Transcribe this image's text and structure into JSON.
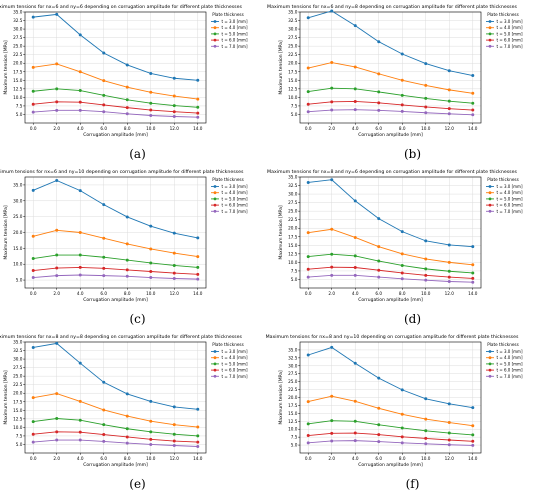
{
  "figure": {
    "panels": [
      {
        "caption": "(a)",
        "chart_data": {
          "type": "line",
          "title": "Maximum tensions for nx=6 and ny=6 depending on corrugation amplitude for different plate thicknesses",
          "xlabel": "Corrugation amplitude [mm]",
          "ylabel": "Maximum tension [MPa]",
          "x": [
            0,
            2,
            4,
            6,
            8,
            10,
            12,
            14
          ],
          "xticks": [
            "0.0",
            "2.0",
            "4.0",
            "6.0",
            "8.0",
            "10.0",
            "12.0",
            "14.0"
          ],
          "ylim": [
            2.5,
            35
          ],
          "yticks": [
            "5.0",
            "7.5",
            "10.0",
            "12.5",
            "15.0",
            "17.5",
            "20.0",
            "22.5",
            "25.0",
            "27.5",
            "30.0",
            "32.5",
            "35.0"
          ],
          "grid": true,
          "legend_title": "Plate thickness",
          "legend_position": "outside-right",
          "series": [
            {
              "name": "t = 3.0 [mm]",
              "color": "#1f77b4",
              "values": [
                33.5,
                34.3,
                28.3,
                23.0,
                19.5,
                17.0,
                15.6,
                15.0
              ]
            },
            {
              "name": "t = 4.0 [mm]",
              "color": "#ff7f0e",
              "values": [
                18.8,
                19.8,
                17.5,
                14.9,
                13.0,
                11.5,
                10.4,
                9.5
              ]
            },
            {
              "name": "t = 5.0 [mm]",
              "color": "#2ca02c",
              "values": [
                11.8,
                12.5,
                12.0,
                10.6,
                9.3,
                8.3,
                7.6,
                7.1
              ]
            },
            {
              "name": "t = 6.0 [mm]",
              "color": "#d62728",
              "values": [
                8.0,
                8.7,
                8.6,
                7.8,
                7.0,
                6.3,
                5.8,
                5.4
              ]
            },
            {
              "name": "t = 7.0 [mm]",
              "color": "#9467bd",
              "values": [
                5.7,
                6.2,
                6.2,
                5.8,
                5.2,
                4.7,
                4.4,
                4.2
              ]
            }
          ]
        }
      },
      {
        "caption": "(b)",
        "chart_data": {
          "type": "line",
          "title": "Maximum tensions for nx=6 and ny=8 depending on corrugation amplitude for different plate thicknesses",
          "xlabel": "Corrugation amplitude [mm]",
          "ylabel": "Maximum tension [MPa]",
          "x": [
            0,
            2,
            4,
            6,
            8,
            10,
            12,
            14
          ],
          "xticks": [
            "0.0",
            "2.0",
            "4.0",
            "6.0",
            "8.0",
            "10.0",
            "12.0",
            "14.0"
          ],
          "ylim": [
            2.5,
            35
          ],
          "yticks": [
            "5.0",
            "7.5",
            "10.0",
            "12.5",
            "15.0",
            "17.5",
            "20.0",
            "22.5",
            "25.0",
            "27.5",
            "30.0",
            "32.5",
            "35.0"
          ],
          "grid": true,
          "legend_title": "Plate thickness",
          "legend_position": "outside-right",
          "series": [
            {
              "name": "t = 3.0 [mm]",
              "color": "#1f77b4",
              "values": [
                33.3,
                35.3,
                31.0,
                26.3,
                22.7,
                19.9,
                17.8,
                16.4
              ]
            },
            {
              "name": "t = 4.0 [mm]",
              "color": "#ff7f0e",
              "values": [
                18.6,
                20.2,
                18.9,
                16.9,
                15.0,
                13.5,
                12.2,
                11.2
              ]
            },
            {
              "name": "t = 5.0 [mm]",
              "color": "#2ca02c",
              "values": [
                11.7,
                12.7,
                12.5,
                11.6,
                10.6,
                9.7,
                8.9,
                8.3
              ]
            },
            {
              "name": "t = 6.0 [mm]",
              "color": "#d62728",
              "values": [
                8.0,
                8.7,
                8.8,
                8.4,
                7.8,
                7.2,
                6.7,
                6.3
              ]
            },
            {
              "name": "t = 7.0 [mm]",
              "color": "#9467bd",
              "values": [
                5.8,
                6.3,
                6.4,
                6.2,
                5.9,
                5.5,
                5.2,
                4.9
              ]
            }
          ]
        }
      },
      {
        "caption": "(c)",
        "chart_data": {
          "type": "line",
          "title": "Maximum tensions for nx=6 and ny=10 depending on corrugation amplitude for different plate thicknesses",
          "xlabel": "Corrugation amplitude [mm]",
          "ylabel": "Maximum tension [MPa]",
          "x": [
            0,
            2,
            4,
            6,
            8,
            10,
            12,
            14
          ],
          "xticks": [
            "0.0",
            "2.0",
            "4.0",
            "6.0",
            "8.0",
            "10.0",
            "12.0",
            "14.0"
          ],
          "ylim": [
            2.5,
            37.5
          ],
          "yticks": [
            "5.0",
            "10.0",
            "15.0",
            "20.0",
            "25.0",
            "30.0",
            "35.0"
          ],
          "grid": true,
          "legend_title": "Plate thickness",
          "legend_position": "outside-right",
          "series": [
            {
              "name": "t = 3.0 [mm]",
              "color": "#1f77b4",
              "values": [
                33.3,
                36.4,
                33.2,
                28.8,
                24.9,
                22.0,
                19.8,
                18.3
              ]
            },
            {
              "name": "t = 4.0 [mm]",
              "color": "#ff7f0e",
              "values": [
                18.8,
                20.7,
                20.0,
                18.2,
                16.4,
                14.8,
                13.5,
                12.4
              ]
            },
            {
              "name": "t = 5.0 [mm]",
              "color": "#2ca02c",
              "values": [
                11.8,
                12.9,
                12.9,
                12.2,
                11.3,
                10.4,
                9.6,
                9.0
              ]
            },
            {
              "name": "t = 6.0 [mm]",
              "color": "#d62728",
              "values": [
                8.0,
                8.8,
                9.0,
                8.7,
                8.2,
                7.7,
                7.2,
                6.8
              ]
            },
            {
              "name": "t = 7.0 [mm]",
              "color": "#9467bd",
              "values": [
                5.8,
                6.4,
                6.6,
                6.4,
                6.2,
                5.8,
                5.5,
                5.3
              ]
            }
          ]
        }
      },
      {
        "caption": "(d)",
        "chart_data": {
          "type": "line",
          "title": "Maximum tensions for nx=8 and ny=6 depending on corrugation amplitude for different plate thicknesses",
          "xlabel": "Corrugation amplitude [mm]",
          "ylabel": "Maximum tension [MPa]",
          "x": [
            0,
            2,
            4,
            6,
            8,
            10,
            12,
            14
          ],
          "xticks": [
            "0.0",
            "2.0",
            "4.0",
            "6.0",
            "8.0",
            "10.0",
            "12.0",
            "14.0"
          ],
          "ylim": [
            2.5,
            35
          ],
          "yticks": [
            "5.0",
            "7.5",
            "10.0",
            "12.5",
            "15.0",
            "17.5",
            "20.0",
            "22.5",
            "25.0",
            "27.5",
            "30.0",
            "32.5",
            "35.0"
          ],
          "grid": true,
          "legend_title": "Plate thickness",
          "legend_position": "outside-right",
          "series": [
            {
              "name": "t = 3.0 [mm]",
              "color": "#1f77b4",
              "values": [
                33.4,
                34.2,
                28.0,
                22.8,
                19.0,
                16.3,
                15.1,
                14.6
              ]
            },
            {
              "name": "t = 4.0 [mm]",
              "color": "#ff7f0e",
              "values": [
                18.7,
                19.7,
                17.3,
                14.6,
                12.5,
                11.0,
                10.0,
                9.3
              ]
            },
            {
              "name": "t = 5.0 [mm]",
              "color": "#2ca02c",
              "values": [
                11.7,
                12.4,
                11.9,
                10.4,
                9.1,
                8.1,
                7.4,
                6.9
              ]
            },
            {
              "name": "t = 6.0 [mm]",
              "color": "#d62728",
              "values": [
                8.0,
                8.6,
                8.5,
                7.7,
                6.9,
                6.2,
                5.7,
                5.3
              ]
            },
            {
              "name": "t = 7.0 [mm]",
              "color": "#9467bd",
              "values": [
                5.7,
                6.2,
                6.2,
                5.7,
                5.2,
                4.8,
                4.4,
                4.2
              ]
            }
          ]
        }
      },
      {
        "caption": "(e)",
        "chart_data": {
          "type": "line",
          "title": "Maximum tensions for nx=8 and ny=8 depending on corrugation amplitude for different plate thicknesses",
          "xlabel": "Corrugation amplitude [mm]",
          "ylabel": "Maximum tension [MPa]",
          "x": [
            0,
            2,
            4,
            6,
            8,
            10,
            12,
            14
          ],
          "xticks": [
            "0.0",
            "2.0",
            "4.0",
            "6.0",
            "8.0",
            "10.0",
            "12.0",
            "14.0"
          ],
          "ylim": [
            2.5,
            35
          ],
          "yticks": [
            "5.0",
            "7.5",
            "10.0",
            "12.5",
            "15.0",
            "17.5",
            "20.0",
            "22.5",
            "25.0",
            "27.5",
            "30.0",
            "32.5",
            "35.0"
          ],
          "grid": true,
          "legend_title": "Plate thickness",
          "legend_position": "outside-right",
          "series": [
            {
              "name": "t = 3.0 [mm]",
              "color": "#1f77b4",
              "values": [
                33.4,
                34.6,
                28.8,
                23.2,
                19.8,
                17.6,
                16.0,
                15.3
              ]
            },
            {
              "name": "t = 4.0 [mm]",
              "color": "#ff7f0e",
              "values": [
                18.7,
                19.9,
                17.6,
                15.1,
                13.3,
                11.8,
                10.8,
                10.1
              ]
            },
            {
              "name": "t = 5.0 [mm]",
              "color": "#2ca02c",
              "values": [
                11.7,
                12.6,
                12.1,
                10.8,
                9.6,
                8.7,
                8.0,
                7.5
              ]
            },
            {
              "name": "t = 6.0 [mm]",
              "color": "#d62728",
              "values": [
                8.0,
                8.7,
                8.6,
                7.9,
                7.2,
                6.5,
                6.0,
                5.7
              ]
            },
            {
              "name": "t = 7.0 [mm]",
              "color": "#9467bd",
              "values": [
                5.7,
                6.3,
                6.3,
                5.9,
                5.4,
                5.0,
                4.7,
                4.4
              ]
            }
          ]
        }
      },
      {
        "caption": "(f)",
        "chart_data": {
          "type": "line",
          "title": "Maximum tensions for nx=8 and ny=10 depending on corrugation amplitude for different plate thicknesses",
          "xlabel": "Corrugation amplitude [mm]",
          "ylabel": "Maximum tension [MPa]",
          "x": [
            0,
            2,
            4,
            6,
            8,
            10,
            12,
            14
          ],
          "xticks": [
            "0.0",
            "2.0",
            "4.0",
            "6.0",
            "8.0",
            "10.0",
            "12.0",
            "14.0"
          ],
          "ylim": [
            2.5,
            37.5
          ],
          "yticks": [
            "5.0",
            "7.5",
            "10.0",
            "12.5",
            "15.0",
            "17.5",
            "20.0",
            "22.5",
            "25.0",
            "27.5",
            "30.0",
            "32.5",
            "35.0"
          ],
          "grid": true,
          "legend_title": "Plate thickness",
          "legend_position": "outside-right",
          "series": [
            {
              "name": "t = 3.0 [mm]",
              "color": "#1f77b4",
              "values": [
                33.4,
                35.8,
                30.8,
                26.1,
                22.4,
                19.6,
                18.0,
                16.8
              ]
            },
            {
              "name": "t = 4.0 [mm]",
              "color": "#ff7f0e",
              "values": [
                18.7,
                20.4,
                18.8,
                16.6,
                14.7,
                13.2,
                12.1,
                11.1
              ]
            },
            {
              "name": "t = 5.0 [mm]",
              "color": "#2ca02c",
              "values": [
                11.7,
                12.7,
                12.5,
                11.4,
                10.4,
                9.5,
                8.8,
                8.2
              ]
            },
            {
              "name": "t = 6.0 [mm]",
              "color": "#d62728",
              "values": [
                8.0,
                8.7,
                8.8,
                8.3,
                7.6,
                7.1,
                6.6,
                6.2
              ]
            },
            {
              "name": "t = 7.0 [mm]",
              "color": "#9467bd",
              "values": [
                5.7,
                6.3,
                6.4,
                6.1,
                5.7,
                5.4,
                5.1,
                4.9
              ]
            }
          ]
        }
      }
    ]
  }
}
